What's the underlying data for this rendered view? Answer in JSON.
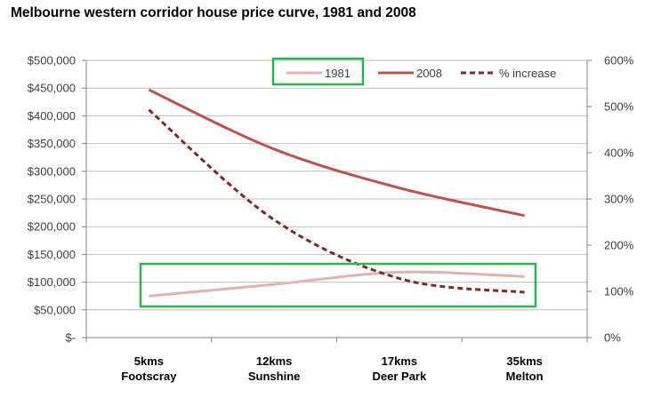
{
  "title": "Melbourne western corridor house price curve, 1981 and 2008",
  "highlight_color": "#2db34a",
  "chart_data": {
    "type": "line",
    "title": "Melbourne western corridor house price curve, 1981 and 2008",
    "categories": [
      [
        "5kms",
        "Footscray"
      ],
      [
        "12kms",
        "Sunshine"
      ],
      [
        "17kms",
        "Deer Park"
      ],
      [
        "35kms",
        "Melton"
      ]
    ],
    "y_left": {
      "min": 0,
      "max": 500000,
      "step": 50000,
      "tick_labels": [
        "$-",
        "$50,000",
        "$100,000",
        "$150,000",
        "$200,000",
        "$250,000",
        "$300,000",
        "$350,000",
        "$400,000",
        "$450,000",
        "$500,000"
      ]
    },
    "y_right": {
      "min": 0,
      "max": 600,
      "step": 100,
      "tick_labels": [
        "0%",
        "100%",
        "200%",
        "300%",
        "400%",
        "500%",
        "600%"
      ]
    },
    "grid": true,
    "legend_position": "top",
    "series": [
      {
        "name": "1981",
        "axis": "left",
        "color": "#e6b0b0",
        "dash": "",
        "values": [
          75000,
          96000,
          118000,
          110000
        ]
      },
      {
        "name": "2008",
        "axis": "left",
        "color": "#c0504d",
        "dash": "",
        "values": [
          447000,
          340000,
          270000,
          220000
        ]
      },
      {
        "name": "% increase",
        "axis": "right",
        "color": "#7b2a28",
        "dash": "6,4",
        "values": [
          493,
          255,
          128,
          98
        ]
      }
    ]
  }
}
